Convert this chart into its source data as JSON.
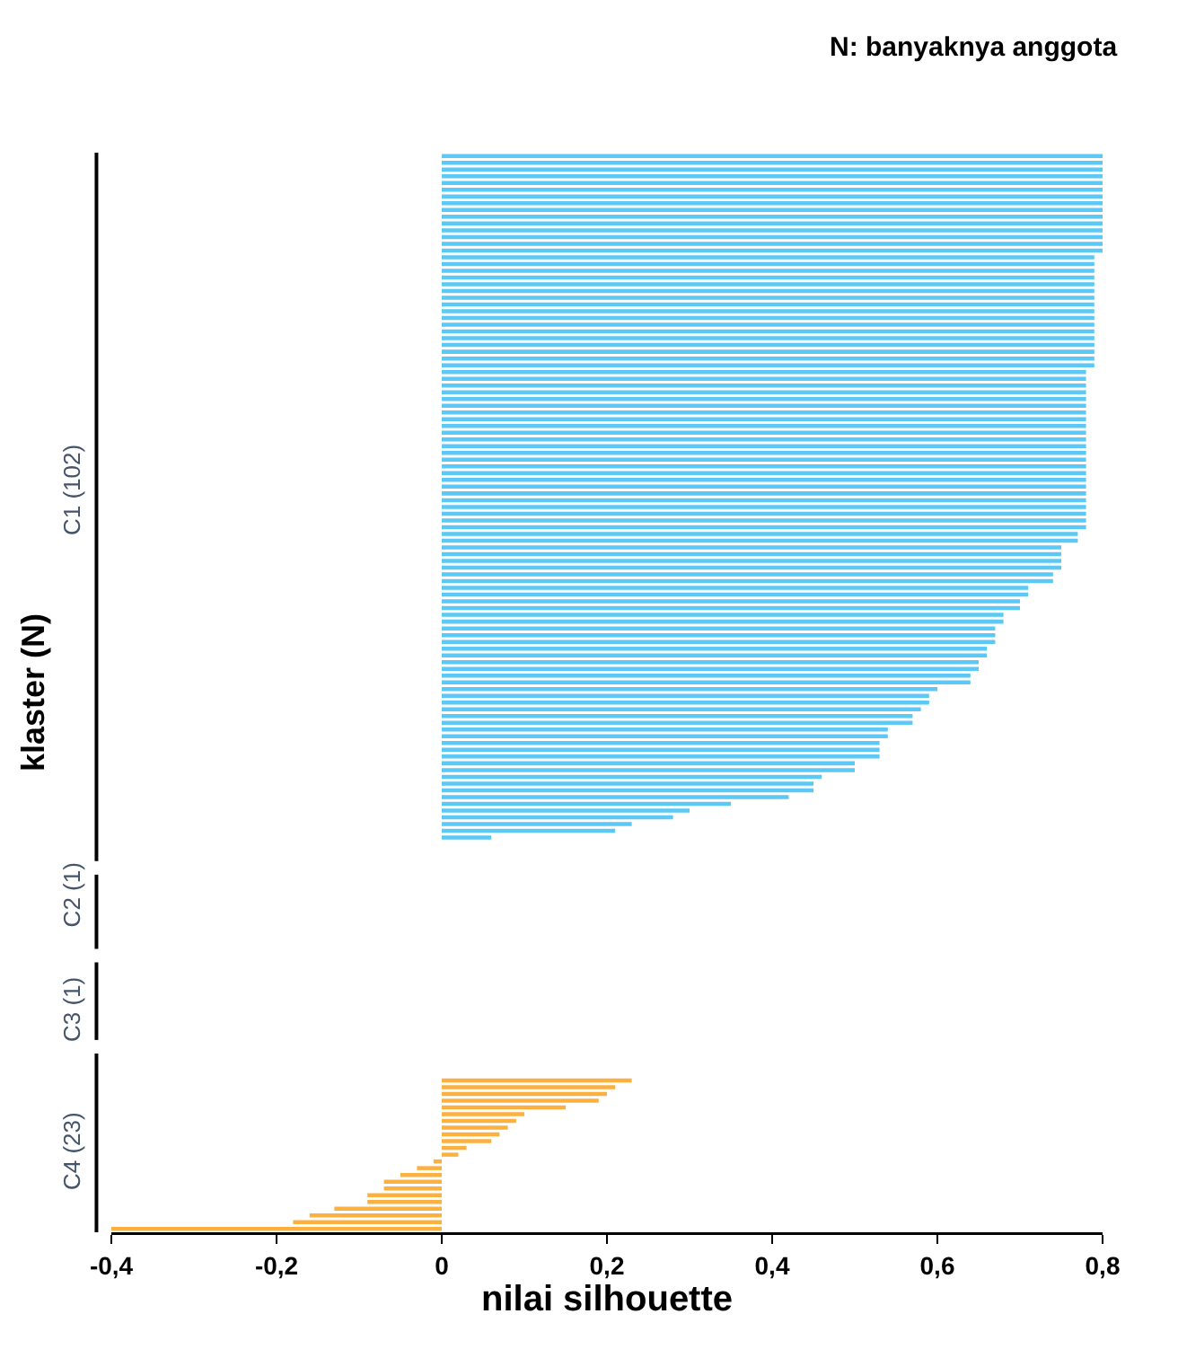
{
  "chart_data": {
    "type": "bar",
    "orientation": "horizontal",
    "ylabel": "klaster (N)",
    "xlabel": "nilai silhouette",
    "annotations": [
      "N: banyaknya anggota"
    ],
    "xlim": [
      -0.4,
      0.8
    ],
    "xticks": [
      {
        "value": -0.4,
        "label": "-0,4"
      },
      {
        "value": -0.2,
        "label": "-0,2"
      },
      0,
      {
        "value": 0.2,
        "label": "0,2"
      },
      {
        "value": 0.4,
        "label": "0,4"
      },
      {
        "value": 0.6,
        "label": "0,6"
      },
      {
        "value": 0.8,
        "label": "0,8"
      }
    ],
    "categories": [
      null,
      null,
      null,
      null,
      null,
      null,
      null,
      null,
      null,
      null,
      null,
      null,
      null,
      null,
      null,
      null,
      null,
      null,
      null,
      null,
      null,
      null,
      null,
      null,
      null,
      null,
      null,
      null,
      null,
      null,
      null,
      null,
      null,
      null,
      null,
      null,
      null,
      null,
      null,
      null,
      null,
      null,
      null,
      null,
      null,
      null,
      null,
      null,
      null,
      null,
      "C1 (102)",
      null,
      null,
      null,
      null,
      null,
      null,
      null,
      null,
      null,
      null,
      null,
      null,
      null,
      null,
      null,
      null,
      null,
      null,
      null,
      null,
      null,
      null,
      null,
      null,
      null,
      null,
      null,
      null,
      null,
      null,
      null,
      null,
      null,
      null,
      null,
      null,
      null,
      null,
      null,
      null,
      null,
      null,
      null,
      null,
      null,
      null,
      null,
      null,
      null,
      null,
      null,
      null,
      null,
      null,
      null,
      null,
      null,
      null,
      null,
      "C2 (1)",
      null,
      null,
      null,
      null,
      null,
      null,
      null,
      null,
      null,
      null,
      null,
      null,
      null,
      null,
      null,
      null,
      "C3 (1)",
      null,
      null,
      null,
      null,
      null,
      null,
      null,
      null,
      null,
      null,
      null,
      null,
      null,
      null,
      null,
      null,
      null,
      null,
      null,
      null,
      "C4 (23)",
      null,
      null,
      null,
      null,
      null,
      null,
      null,
      null,
      null,
      null,
      null
    ],
    "series": [
      {
        "color": "#5bc8f5",
        "values": [
          0.8,
          0.8,
          0.8,
          0.8,
          0.8,
          0.8,
          0.8,
          0.8,
          0.8,
          0.8,
          0.8,
          0.8,
          0.8,
          0.8,
          0.8,
          0.79,
          0.79,
          0.79,
          0.79,
          0.79,
          0.79,
          0.79,
          0.79,
          0.79,
          0.79,
          0.79,
          0.79,
          0.79,
          0.79,
          0.79,
          0.79,
          0.79,
          0.78,
          0.78,
          0.78,
          0.78,
          0.78,
          0.78,
          0.78,
          0.78,
          0.78,
          0.78,
          0.78,
          0.78,
          0.78,
          0.78,
          0.78,
          0.78,
          0.78,
          0.78,
          0.78,
          0.78,
          0.78,
          0.78,
          0.78,
          0.78,
          0.77,
          0.77,
          0.75,
          0.75,
          0.75,
          0.75,
          0.74,
          0.74,
          0.71,
          0.71,
          0.7,
          0.7,
          0.68,
          0.68,
          0.67,
          0.67,
          0.67,
          0.66,
          0.66,
          0.65,
          0.65,
          0.64,
          0.64,
          0.6,
          0.59,
          0.59,
          0.58,
          0.57,
          0.57,
          0.54,
          0.54,
          0.53,
          0.53,
          0.53,
          0.5,
          0.5,
          0.46,
          0.45,
          0.45,
          0.42,
          0.35,
          0.3,
          0.28,
          0.23,
          0.21,
          0.06,
          null,
          null,
          null,
          null,
          null,
          null,
          null,
          null,
          null,
          null,
          null,
          null,
          null,
          null,
          null,
          null,
          null,
          null,
          null,
          null,
          null,
          null,
          null,
          null,
          null,
          null,
          null,
          null,
          null,
          null,
          null,
          null,
          null,
          null,
          null,
          null,
          null,
          null,
          null,
          null,
          null,
          null,
          null,
          null,
          null,
          null,
          null,
          null,
          null,
          null,
          null,
          null,
          null,
          null,
          null,
          null,
          null,
          null
        ]
      },
      {
        "color": "#fbb040",
        "values": [
          null,
          null,
          null,
          null,
          null,
          null,
          null,
          null,
          null,
          null,
          null,
          null,
          null,
          null,
          null,
          null,
          null,
          null,
          null,
          null,
          null,
          null,
          null,
          null,
          null,
          null,
          null,
          null,
          null,
          null,
          null,
          null,
          null,
          null,
          null,
          null,
          null,
          null,
          null,
          null,
          null,
          null,
          null,
          null,
          null,
          null,
          null,
          null,
          null,
          null,
          null,
          null,
          null,
          null,
          null,
          null,
          null,
          null,
          null,
          null,
          null,
          null,
          null,
          null,
          null,
          null,
          null,
          null,
          null,
          null,
          null,
          null,
          null,
          null,
          null,
          null,
          null,
          null,
          null,
          null,
          null,
          null,
          null,
          null,
          null,
          null,
          null,
          null,
          null,
          null,
          null,
          null,
          null,
          null,
          null,
          null,
          null,
          null,
          null,
          null,
          null,
          null,
          null,
          null,
          null,
          null,
          null,
          null,
          null,
          null,
          0,
          null,
          null,
          null,
          null,
          null,
          null,
          null,
          null,
          null,
          null,
          null,
          null,
          null,
          null,
          null,
          null,
          0,
          null,
          null,
          null,
          null,
          null,
          null,
          null,
          null,
          null,
          0.23,
          0.21,
          0.2,
          0.19,
          0.15,
          0.1,
          0.09,
          0.08,
          0.07,
          0.06,
          0.03,
          0.02,
          -0.01,
          -0.03,
          -0.05,
          -0.07,
          -0.07,
          -0.09,
          -0.09,
          -0.13,
          -0.16,
          -0.18,
          -0.4
        ]
      }
    ]
  }
}
